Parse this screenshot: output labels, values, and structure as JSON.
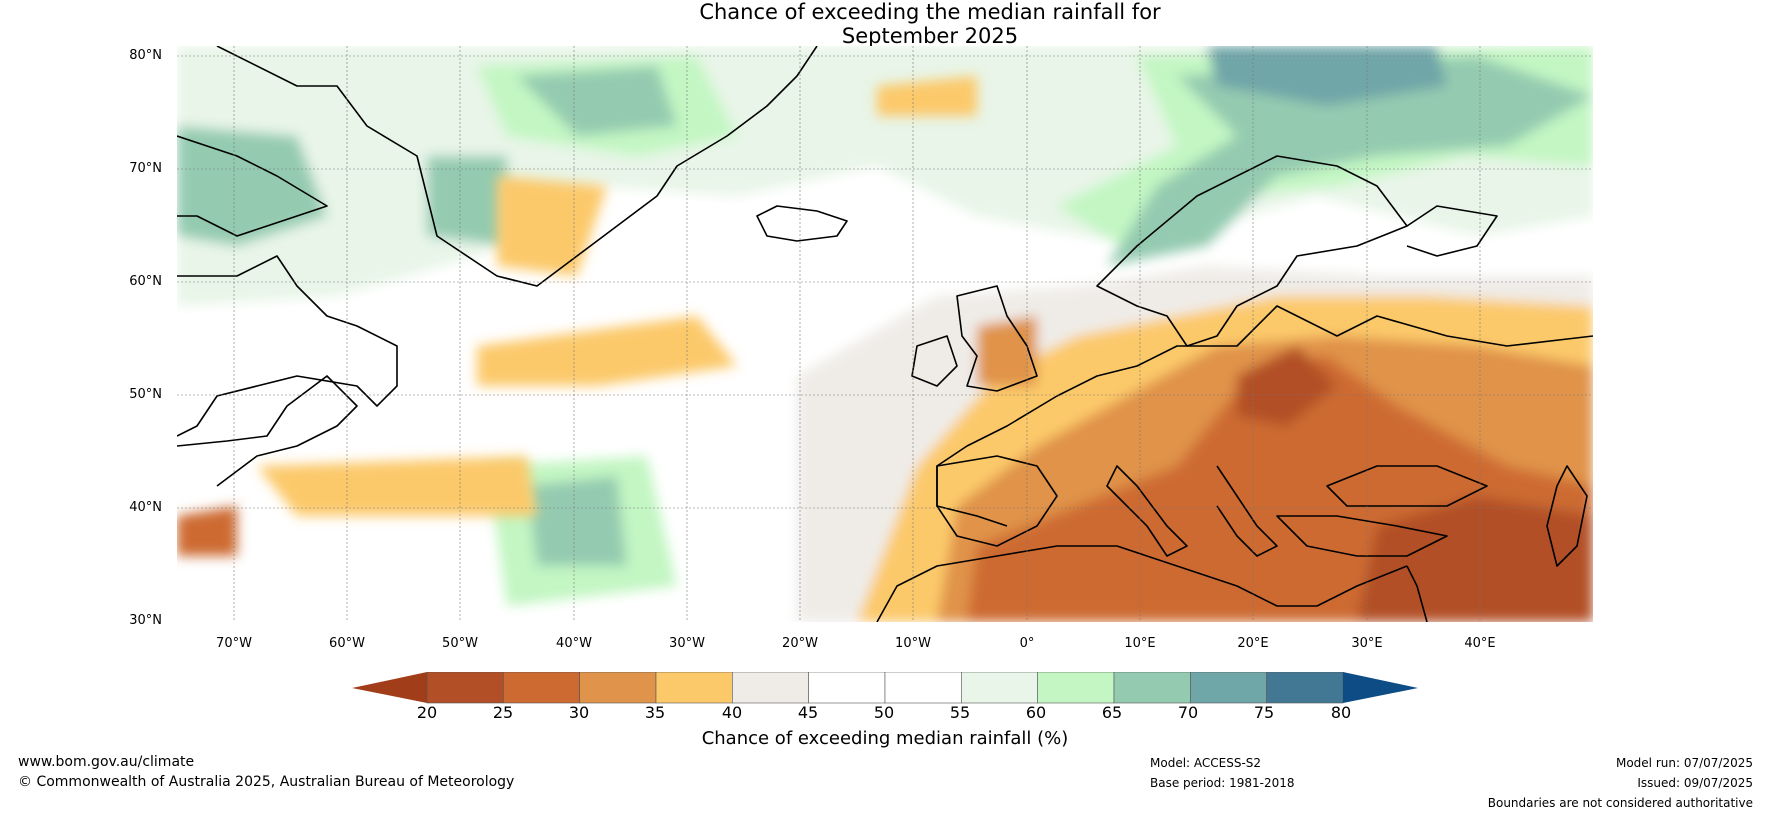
{
  "title": {
    "line1": "Chance of exceeding the median rainfall for",
    "line2": "September 2025"
  },
  "map": {
    "lat_labels": [
      "80°N",
      "70°N",
      "60°N",
      "50°N",
      "40°N",
      "30°N"
    ],
    "lon_labels": [
      "70°W",
      "60°W",
      "50°W",
      "40°W",
      "30°W",
      "20°W",
      "10°W",
      "0°",
      "10°E",
      "20°E",
      "30°E",
      "40°E"
    ],
    "extent": {
      "lon_min": -75,
      "lon_max": 50,
      "lat_min": 30,
      "lat_max": 81
    },
    "ocean_color": "#ffffff",
    "coast_color": "#000000",
    "border_color": "#808080"
  },
  "colorbar": {
    "ticks": [
      "20",
      "25",
      "30",
      "35",
      "40",
      "45",
      "50",
      "55",
      "60",
      "65",
      "70",
      "75",
      "80"
    ],
    "colors": {
      "below": "#a23d1a",
      "bins": [
        "#b24f27",
        "#cd6a32",
        "#e0934a",
        "#fcc96a",
        "#efece8",
        "#ffffff",
        "#ffffff",
        "#e8f5e8",
        "#c3f6c3",
        "#94cbb0",
        "#6fa6a8",
        "#437894"
      ],
      "above": "#0e4c86"
    },
    "label": "Chance of exceeding median rainfall (%)"
  },
  "footer": {
    "website": "www.bom.gov.au/climate",
    "copyright": "© Commonwealth of Australia 2025, Australian Bureau of Meteorology",
    "model": "Model: ACCESS-S2",
    "base_period": "Base period: 1981-2018",
    "model_run": "Model run: 07/07/2025",
    "issued": "Issued: 09/07/2025",
    "disclaimer": "Boundaries are not considered authoritative"
  }
}
